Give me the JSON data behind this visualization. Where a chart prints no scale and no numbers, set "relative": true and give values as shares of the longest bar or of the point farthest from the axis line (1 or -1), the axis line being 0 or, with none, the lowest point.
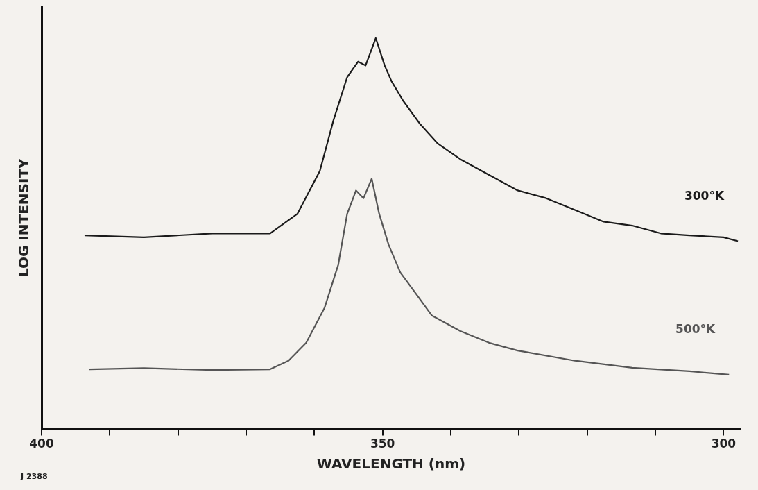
{
  "chart_data": {
    "type": "line",
    "xlabel": "WAVELENGTH (nm)",
    "ylabel": "LOG INTENSITY",
    "relative": true,
    "xlim": [
      400,
      297.5
    ],
    "xticks": [
      400,
      {
        "value": 390,
        "label": null
      },
      {
        "value": 380,
        "label": null
      },
      {
        "value": 370,
        "label": null
      },
      {
        "value": 360,
        "label": null
      },
      350,
      {
        "value": 340,
        "label": null
      },
      {
        "value": 330,
        "label": null
      },
      {
        "value": 320,
        "label": null
      },
      {
        "value": 310,
        "label": null
      },
      300
    ],
    "grid": false,
    "legend": false,
    "marker": "none",
    "line_style": "solid",
    "annotations": [
      "J 2388"
    ],
    "series": [
      {
        "name": "300°K",
        "color": "#1a1a1a",
        "x": [
          393.7,
          385,
          375,
          366.5,
          362.5,
          359.2,
          357.2,
          355.2,
          353.6,
          352.5,
          351,
          349.7,
          348.7,
          347,
          344.5,
          341.9,
          338.6,
          334.4,
          330.2,
          326,
          321.8,
          317.6,
          313.4,
          309.2,
          305,
          300,
          297.9
        ],
        "values": [
          0.495,
          0.49,
          0.5,
          0.5,
          0.55,
          0.66,
          0.79,
          0.9,
          0.94,
          0.93,
          1,
          0.93,
          0.89,
          0.84,
          0.78,
          0.73,
          0.69,
          0.65,
          0.61,
          0.59,
          0.56,
          0.53,
          0.52,
          0.5,
          0.495,
          0.49,
          0.48
        ]
      },
      {
        "name": "500°K",
        "color": "#555555",
        "x": [
          393,
          385,
          375,
          366.5,
          363.8,
          361.2,
          358.5,
          356.5,
          355.2,
          353.9,
          352.8,
          351.6,
          350.5,
          349.1,
          347.4,
          345.3,
          342.8,
          338.6,
          334.4,
          330.2,
          321.8,
          313.4,
          305,
          299.2
        ],
        "values": [
          0.152,
          0.155,
          0.15,
          0.152,
          0.174,
          0.22,
          0.31,
          0.42,
          0.55,
          0.61,
          0.59,
          0.64,
          0.55,
          0.47,
          0.4,
          0.35,
          0.29,
          0.25,
          0.22,
          0.2,
          0.174,
          0.156,
          0.147,
          0.138
        ]
      }
    ]
  }
}
